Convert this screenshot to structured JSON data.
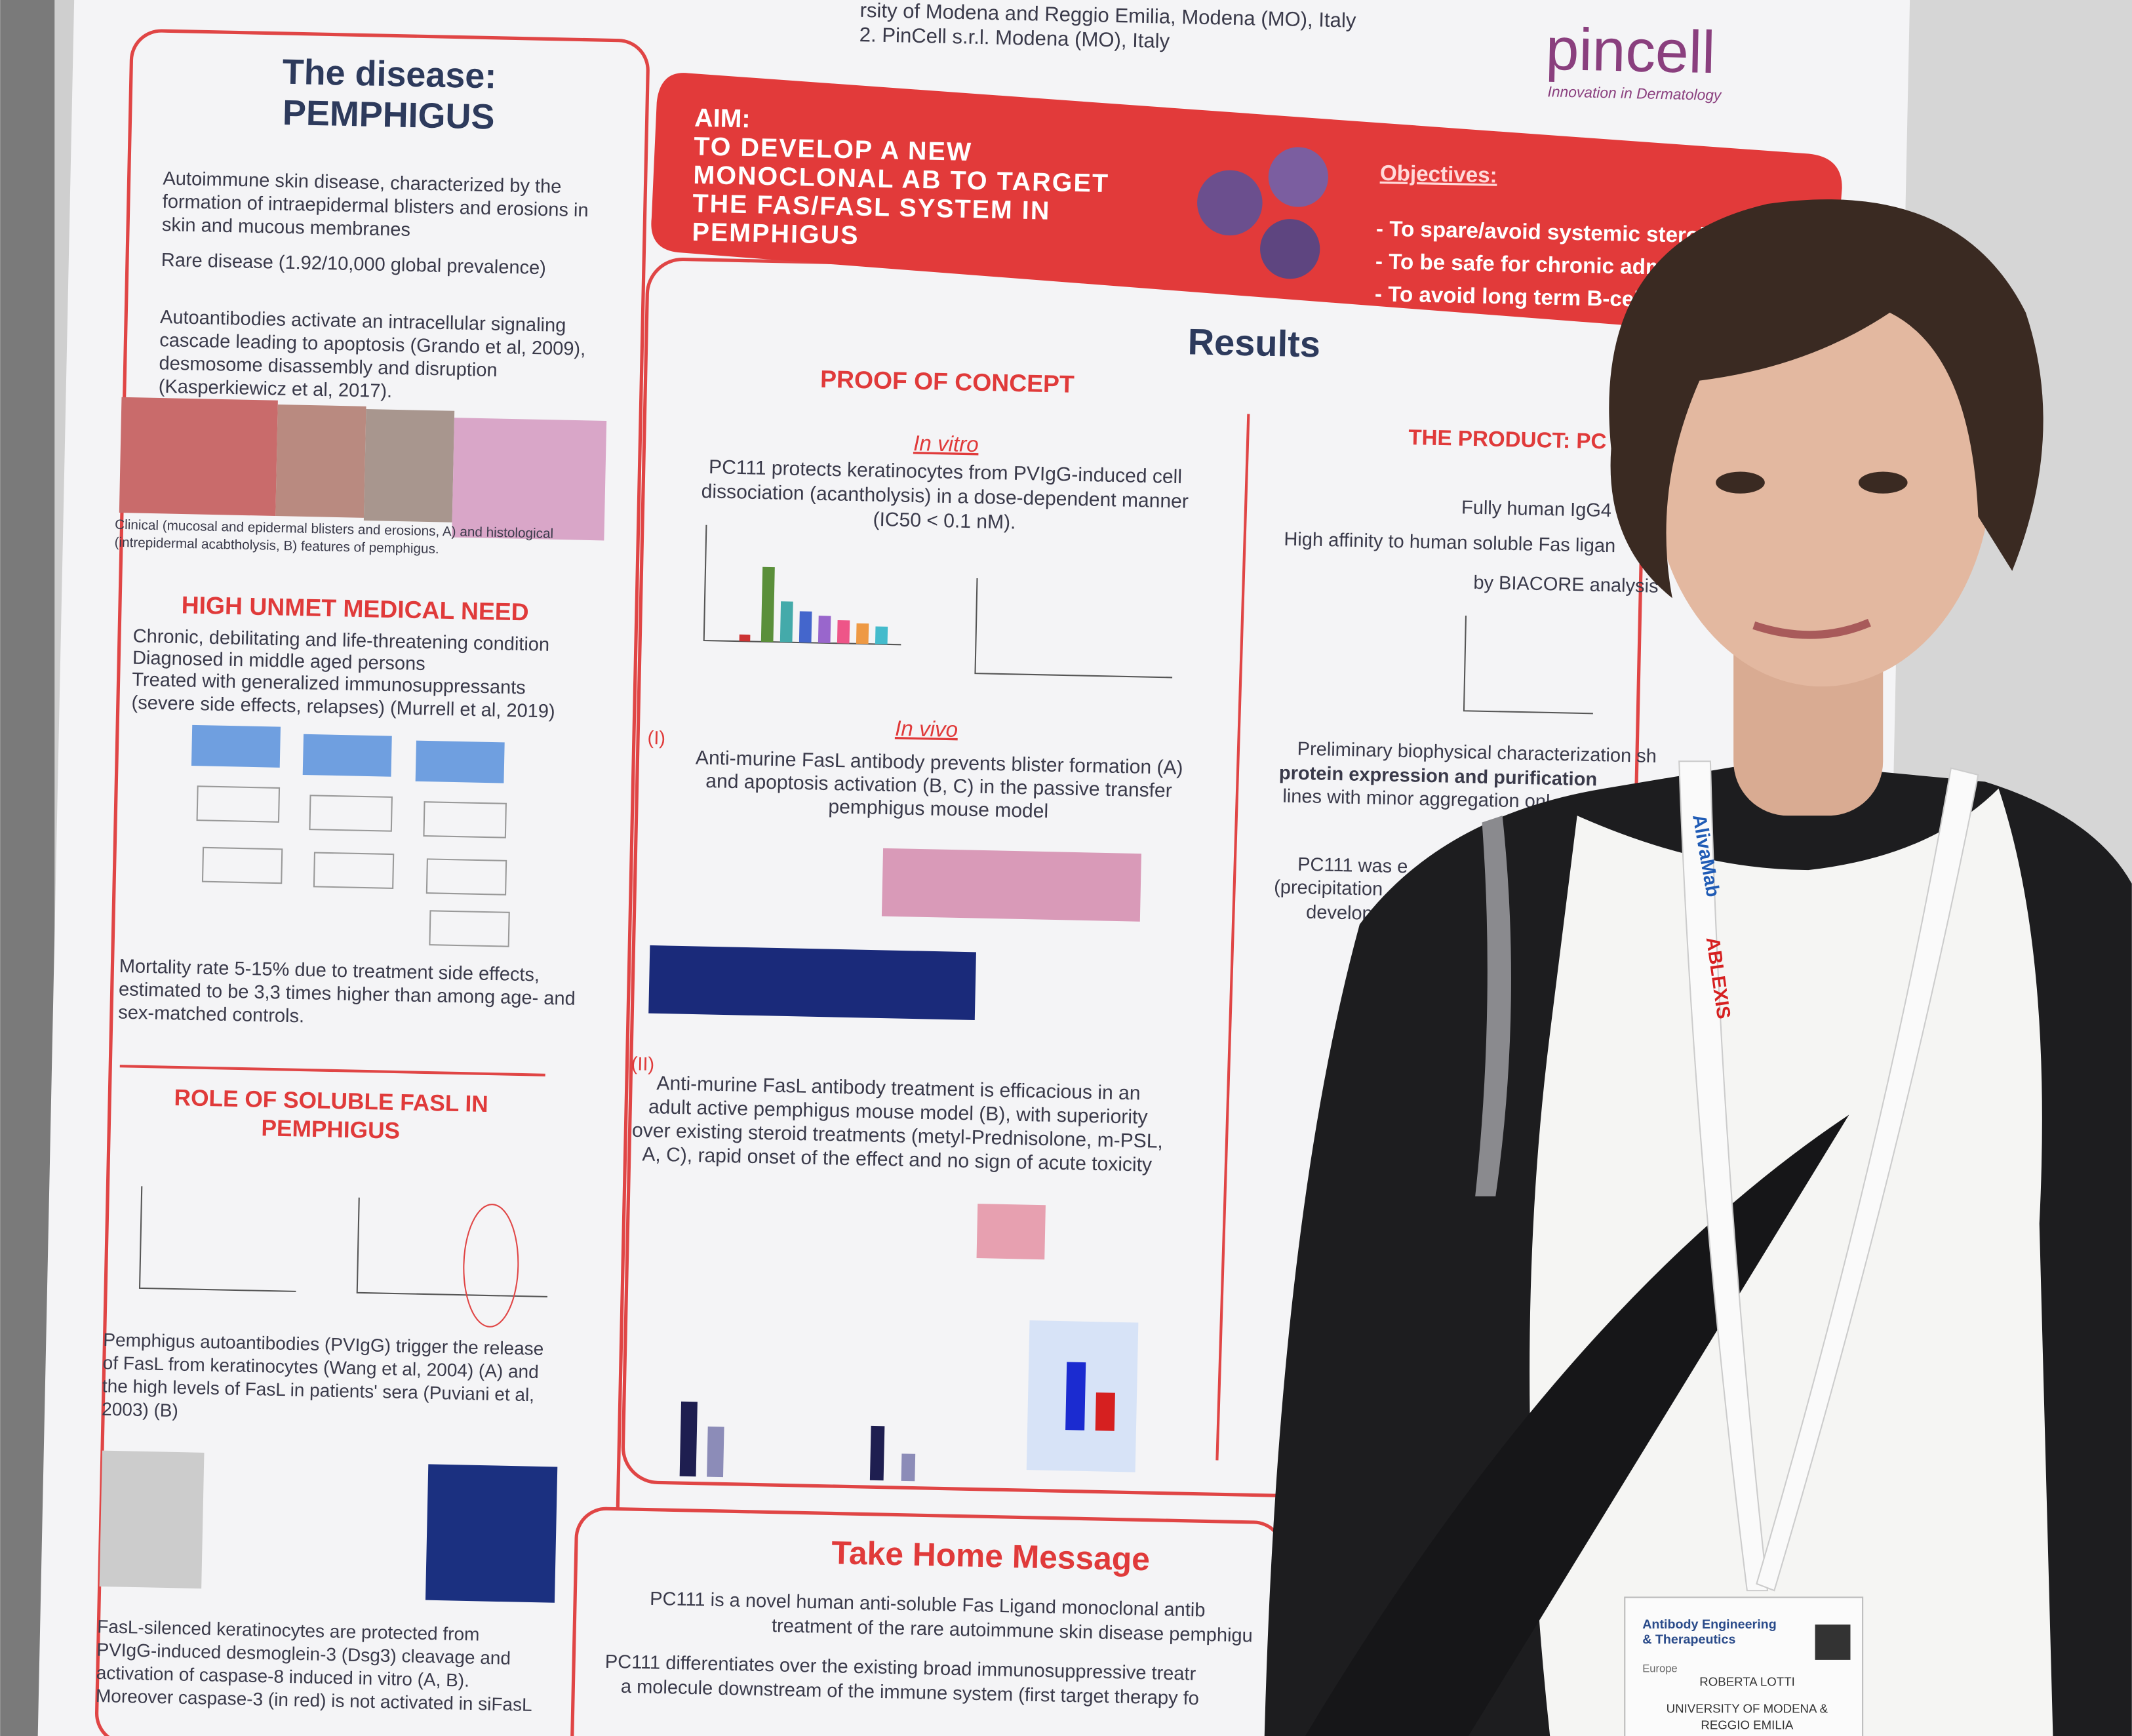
{
  "poster": {
    "affiliations": [
      "rsity of Modena and Reggio Emilia, Modena (MO), Italy",
      "2. PinCell s.r.l. Modena (MO), Italy"
    ],
    "logo": {
      "name": "pincell",
      "tagline": "Innovation in Dermatology"
    },
    "disease": {
      "title": [
        "The disease:",
        "PEMPHIGUS"
      ],
      "bullets": [
        [
          "Autoimmune skin disease, characterized by the",
          "formation of intraepidermal blisters and erosions in",
          "skin and mucous membranes"
        ],
        [
          "Rare disease (1.92/10,000 global prevalence)"
        ],
        [
          "Autoantibodies activate an intracellular signaling",
          "cascade leading to apoptosis (Grando et al, 2009),",
          "desmosome disassembly and disruption",
          "(Kasperkiewicz et al, 2017)."
        ]
      ],
      "caption": [
        "Clinical (mucosal and epidermal blisters and erosions, A) and histological",
        "(intrepidermal acabtholysis, B) features of pemphigus."
      ]
    },
    "unmet_need": {
      "title": "HIGH UNMET MEDICAL NEED",
      "bullets": [
        "Chronic, debilitating and life-threatening condition",
        "Diagnosed in middle aged persons",
        "Treated with generalized immunosuppressants",
        "(severe side effects, relapses) (Murrell et al, 2019)"
      ],
      "mortality": [
        "Mortality rate 5-15% due to treatment side effects,",
        "estimated to be 3,3 times higher than among age- and",
        "sex-matched controls."
      ]
    },
    "fasl": {
      "title": [
        "ROLE OF SOLUBLE FASL IN",
        "PEMPHIGUS"
      ],
      "bullets": [
        [
          "Pemphigus autoantibodies (PVIgG) trigger the release",
          "of FasL from keratinocytes (Wang et al, 2004) (A) and",
          "the high levels of FasL in patients' sera (Puviani et al,",
          "2003) (B)"
        ],
        [
          "FasL-silenced keratinocytes are protected from",
          "PVIgG-induced desmoglein-3 (Dsg3) cleavage and",
          "activation of caspase-8 induced in vitro (A, B).",
          "Moreover caspase-3 (in red) is not activated in siFasL"
        ]
      ]
    },
    "aim": {
      "label": "AIM:",
      "text": [
        "TO DEVELOP A NEW",
        "MONOCLONAL AB TO TARGET",
        "THE FAS/FASL SYSTEM IN",
        "PEMPHIGUS"
      ],
      "objectives_title": "Objectives:",
      "objectives": [
        "- To spare/avoid systemic steroid",
        "- To be safe for chronic admin",
        "- To avoid long term B-cell d"
      ]
    },
    "results": {
      "title": "Results",
      "proof_title": "PROOF OF CONCEPT",
      "in_vitro": "In vitro",
      "in_vitro_text": [
        "PC111 protects keratinocytes from PVIgG-induced cell",
        "dissociation (acantholysis) in a dose-dependent manner",
        "(IC50 < 0.1 nM)."
      ],
      "in_vivo": "In vivo",
      "i": "(I)",
      "i_text": [
        "Anti-murine FasL antibody prevents blister formation (A)",
        "and apoptosis activation (B, C) in the passive transfer",
        "pemphigus mouse model"
      ],
      "ii": "(II)",
      "ii_text": [
        "Anti-murine FasL antibody treatment is efficacious in an",
        "adult active pemphigus mouse model (B), with superiority",
        "over existing steroid treatments (metyl-Prednisolone, m-PSL,",
        "A, C), rapid onset of the effect and no sign of acute toxicity"
      ]
    },
    "product": {
      "title": "THE PRODUCT: PC",
      "lines": [
        "Fully human IgG4",
        "High affinity to human soluble Fas ligan",
        "by BIACORE analysis",
        "Preliminary biophysical characterization sh",
        "protein expression and purification",
        "lines with minor aggregation onl",
        "PC111 was e",
        "(precipitation",
        "develop"
      ]
    },
    "take_home": {
      "title": "Take Home Message",
      "lines": [
        "PC111 is a novel human anti-soluble Fas Ligand monoclonal antib",
        "treatment of the rare autoimmune skin disease pemphigu",
        "PC111 differentiates over the existing broad immunosuppressive treatr",
        "a molecule downstream of the immune system (first target therapy fo"
      ]
    }
  },
  "badge": {
    "event": [
      "Antibody Engineering",
      "& Therapeutics"
    ],
    "region": "Europe",
    "name": "ROBERTA LOTTI",
    "affiliation": [
      "UNIVERSITY OF MODENA &",
      "REGGIO EMILIA"
    ]
  },
  "lanyard": [
    "AlivaMab",
    "ABLEXIS"
  ]
}
